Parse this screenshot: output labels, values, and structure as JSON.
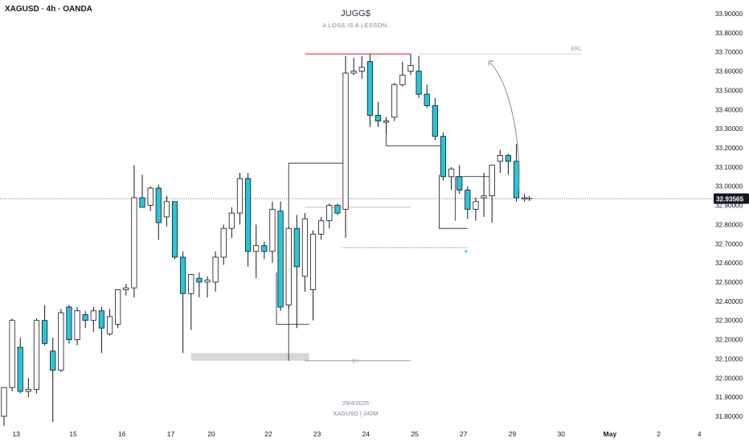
{
  "header": {
    "symbol_label": "XAGUSD · 4h · OANDA"
  },
  "watermark": {
    "title": "JUGG$",
    "subtitle": "A LOSS IS A LESSON."
  },
  "footer": {
    "date": "29/4/2025",
    "symbol_interval": "XAGUSD | 240M"
  },
  "colors": {
    "bull_body": "#ffffff",
    "bear_body": "#26c6da",
    "candle_outline": "#131722",
    "level_line": "#131722",
    "zone_fill": "#d6d7db",
    "red_level": "#e0454b",
    "price_tag_bg": "#131722",
    "price_tag_text": "#ffffff",
    "axis_text": "#131722",
    "annotation_text": "#9598a1"
  },
  "chart_data": {
    "type": "candlestick",
    "symbol": "XAGUSD",
    "timeframe": "4h",
    "broker": "OANDA",
    "last_price": "32.93565",
    "ylim": [
      31.75,
      33.93
    ],
    "y_ticks": [
      "31.80000",
      "31.90000",
      "32.00000",
      "32.10000",
      "32.20000",
      "32.30000",
      "32.40000",
      "32.50000",
      "32.60000",
      "32.70000",
      "32.80000",
      "32.90000",
      "33.00000",
      "33.10000",
      "33.20000",
      "33.30000",
      "33.40000",
      "33.50000",
      "33.60000",
      "33.70000",
      "33.80000",
      "33.90000"
    ],
    "x_ticks": [
      {
        "label": "13",
        "bar": 1.5
      },
      {
        "label": "15",
        "bar": 8.5
      },
      {
        "label": "16",
        "bar": 14.5
      },
      {
        "label": "17",
        "bar": 20.5
      },
      {
        "label": "20",
        "bar": 25.5
      },
      {
        "label": "22",
        "bar": 32.5
      },
      {
        "label": "23",
        "bar": 38.5
      },
      {
        "label": "24",
        "bar": 44.5
      },
      {
        "label": "25",
        "bar": 50.5
      },
      {
        "label": "27",
        "bar": 56.5
      },
      {
        "label": "29",
        "bar": 62.5
      },
      {
        "label": "30",
        "bar": 68.5
      },
      {
        "label": "May",
        "bar": 74.5
      },
      {
        "label": "2",
        "bar": 80.5
      },
      {
        "label": "4",
        "bar": 85.5
      }
    ],
    "candles": [
      {
        "o": 31.8,
        "h": 31.95,
        "l": 31.75,
        "c": 31.95
      },
      {
        "o": 31.95,
        "h": 32.31,
        "l": 31.93,
        "c": 32.3
      },
      {
        "o": 32.16,
        "h": 32.21,
        "l": 31.92,
        "c": 31.93
      },
      {
        "o": 31.93,
        "h": 32.0,
        "l": 31.9,
        "c": 31.94
      },
      {
        "o": 31.94,
        "h": 32.31,
        "l": 31.92,
        "c": 32.3
      },
      {
        "o": 32.3,
        "h": 32.38,
        "l": 32.17,
        "c": 32.18
      },
      {
        "o": 32.14,
        "h": 32.21,
        "l": 31.77,
        "c": 32.04
      },
      {
        "o": 32.04,
        "h": 32.36,
        "l": 32.03,
        "c": 32.34
      },
      {
        "o": 32.37,
        "h": 32.38,
        "l": 32.18,
        "c": 32.2
      },
      {
        "o": 32.2,
        "h": 32.37,
        "l": 32.17,
        "c": 32.35
      },
      {
        "o": 32.33,
        "h": 32.35,
        "l": 32.26,
        "c": 32.3
      },
      {
        "o": 32.3,
        "h": 32.37,
        "l": 32.24,
        "c": 32.35
      },
      {
        "o": 32.35,
        "h": 32.37,
        "l": 32.13,
        "c": 32.26
      },
      {
        "o": 32.23,
        "h": 32.36,
        "l": 32.22,
        "c": 32.32
      },
      {
        "o": 32.28,
        "h": 32.46,
        "l": 32.26,
        "c": 32.46
      },
      {
        "o": 32.46,
        "h": 32.49,
        "l": 32.43,
        "c": 32.47
      },
      {
        "o": 32.47,
        "h": 33.11,
        "l": 32.42,
        "c": 32.94
      },
      {
        "o": 32.94,
        "h": 33.06,
        "l": 32.89,
        "c": 32.89
      },
      {
        "o": 32.9,
        "h": 33.0,
        "l": 32.87,
        "c": 32.99
      },
      {
        "o": 32.99,
        "h": 33.01,
        "l": 32.72,
        "c": 32.81
      },
      {
        "o": 32.84,
        "h": 32.95,
        "l": 32.79,
        "c": 32.92
      },
      {
        "o": 32.92,
        "h": 32.92,
        "l": 32.62,
        "c": 32.63
      },
      {
        "o": 32.63,
        "h": 32.66,
        "l": 32.13,
        "c": 32.44
      },
      {
        "o": 32.44,
        "h": 32.54,
        "l": 32.25,
        "c": 32.54
      },
      {
        "o": 32.52,
        "h": 32.55,
        "l": 32.42,
        "c": 32.5
      },
      {
        "o": 32.5,
        "h": 32.53,
        "l": 32.42,
        "c": 32.51
      },
      {
        "o": 32.5,
        "h": 32.66,
        "l": 32.45,
        "c": 32.63
      },
      {
        "o": 32.63,
        "h": 32.8,
        "l": 32.59,
        "c": 32.78
      },
      {
        "o": 32.78,
        "h": 32.89,
        "l": 32.73,
        "c": 32.86
      },
      {
        "o": 32.86,
        "h": 33.07,
        "l": 32.8,
        "c": 33.04
      },
      {
        "o": 33.04,
        "h": 33.07,
        "l": 32.58,
        "c": 32.66
      },
      {
        "o": 32.66,
        "h": 32.8,
        "l": 32.52,
        "c": 32.69
      },
      {
        "o": 32.69,
        "h": 32.71,
        "l": 32.62,
        "c": 32.66
      },
      {
        "o": 32.66,
        "h": 32.92,
        "l": 32.6,
        "c": 32.88
      },
      {
        "o": 32.87,
        "h": 32.92,
        "l": 32.35,
        "c": 32.37
      },
      {
        "o": 32.38,
        "h": 32.79,
        "l": 32.36,
        "c": 32.78
      },
      {
        "o": 32.78,
        "h": 32.85,
        "l": 32.26,
        "c": 32.58
      },
      {
        "o": 32.53,
        "h": 32.86,
        "l": 32.45,
        "c": 32.83
      },
      {
        "o": 32.46,
        "h": 32.77,
        "l": 32.3,
        "c": 32.75
      },
      {
        "o": 32.75,
        "h": 32.84,
        "l": 32.72,
        "c": 32.82
      },
      {
        "o": 32.82,
        "h": 32.91,
        "l": 32.78,
        "c": 32.9
      },
      {
        "o": 32.9,
        "h": 32.91,
        "l": 32.85,
        "c": 32.86
      },
      {
        "o": 32.88,
        "h": 33.68,
        "l": 32.73,
        "c": 33.59
      },
      {
        "o": 33.59,
        "h": 33.67,
        "l": 33.58,
        "c": 33.6
      },
      {
        "o": 33.6,
        "h": 33.68,
        "l": 33.56,
        "c": 33.62
      },
      {
        "o": 33.65,
        "h": 33.69,
        "l": 33.31,
        "c": 33.37
      },
      {
        "o": 33.37,
        "h": 33.44,
        "l": 33.31,
        "c": 33.34
      },
      {
        "o": 33.34,
        "h": 33.36,
        "l": 33.27,
        "c": 33.34
      },
      {
        "o": 33.36,
        "h": 33.54,
        "l": 33.34,
        "c": 33.53
      },
      {
        "o": 33.53,
        "h": 33.65,
        "l": 33.52,
        "c": 33.58
      },
      {
        "o": 33.6,
        "h": 33.69,
        "l": 33.58,
        "c": 33.63
      },
      {
        "o": 33.6,
        "h": 33.68,
        "l": 33.46,
        "c": 33.48
      },
      {
        "o": 33.48,
        "h": 33.53,
        "l": 33.41,
        "c": 33.42
      },
      {
        "o": 33.42,
        "h": 33.46,
        "l": 33.24,
        "c": 33.26
      },
      {
        "o": 33.26,
        "h": 33.28,
        "l": 33.03,
        "c": 33.05
      },
      {
        "o": 33.05,
        "h": 33.1,
        "l": 32.98,
        "c": 33.09
      },
      {
        "o": 33.05,
        "h": 33.11,
        "l": 32.96,
        "c": 32.98
      },
      {
        "o": 32.98,
        "h": 33.0,
        "l": 32.83,
        "c": 32.88
      },
      {
        "o": 32.88,
        "h": 32.94,
        "l": 32.82,
        "c": 32.92
      },
      {
        "o": 32.94,
        "h": 33.07,
        "l": 32.84,
        "c": 32.95
      },
      {
        "o": 32.95,
        "h": 33.11,
        "l": 32.81,
        "c": 33.11
      },
      {
        "o": 33.13,
        "h": 33.19,
        "l": 33.07,
        "c": 33.16
      },
      {
        "o": 33.16,
        "h": 33.17,
        "l": 33.06,
        "c": 33.13
      },
      {
        "o": 33.13,
        "h": 33.22,
        "l": 32.92,
        "c": 32.94
      },
      {
        "o": 32.94,
        "h": 32.96,
        "l": 32.92,
        "c": 32.94
      }
    ],
    "annotations": {
      "erl": {
        "label": "ERL",
        "price": 33.69,
        "from_bar": 51,
        "to_bar": 71
      },
      "red_level": {
        "price": 33.69,
        "from_bar": 37,
        "to_bar": 50
      },
      "h1_level": {
        "label": "1H",
        "price": 32.09,
        "from_bar": 37,
        "to_bar": 50
      },
      "zone": {
        "top": 32.13,
        "bottom": 32.09,
        "from_bar": 23,
        "to_bar": 37.5
      },
      "gray_level": {
        "price": 32.89,
        "from_bar": 37,
        "to_bar": 50
      },
      "level_a": {
        "price": 33.12,
        "from_bar": 35,
        "to_bar": 42
      },
      "level_b": {
        "price": 32.28,
        "from_bar": 33.5,
        "to_bar": 37.5
      },
      "level_c": {
        "price": 33.21,
        "from_bar": 47,
        "to_bar": 54
      },
      "level_d": {
        "price": 32.78,
        "from_bar": 53.5,
        "to_bar": 57
      },
      "level_e": {
        "price": 33.05,
        "from_bar": 55.5,
        "to_bar": 60
      },
      "dashed_level": {
        "price": 32.68,
        "from_bar": 41.5,
        "to_bar": 57
      },
      "dot_marker": {
        "price": 32.66,
        "bar": 56.8
      },
      "current_price_line": {
        "price": 32.93565
      }
    }
  }
}
